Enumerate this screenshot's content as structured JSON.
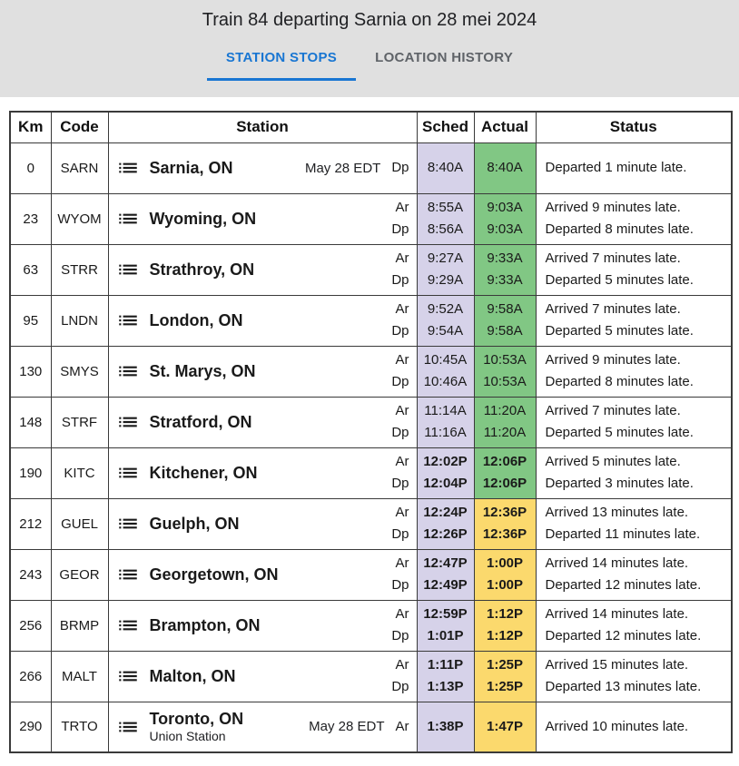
{
  "header": {
    "title": "Train 84 departing Sarnia on 28 mei 2024"
  },
  "tabs": [
    {
      "label": "STATION STOPS",
      "active": true
    },
    {
      "label": "LOCATION HISTORY",
      "active": false
    }
  ],
  "colors": {
    "accent_blue": "#1976d2",
    "tab_inactive": "#5f6368",
    "header_bg": "#e0e0e0",
    "sched_bg": "#d6d2e9",
    "ontime_green": "#81c784",
    "late_yellow": "#fbd96d",
    "border": "#3a3a3a"
  },
  "table": {
    "columns": [
      "Km",
      "Code",
      "Station",
      "Sched",
      "Actual",
      "Status"
    ],
    "rows": [
      {
        "km": "0",
        "code": "SARN",
        "station": "Sarnia, ON",
        "date_note": "May 28 EDT",
        "actual_tone": "green",
        "entries": [
          {
            "label": "Dp",
            "sched": "8:40A",
            "actual": "8:40A",
            "status": "Departed 1 minute late."
          }
        ]
      },
      {
        "km": "23",
        "code": "WYOM",
        "station": "Wyoming, ON",
        "actual_tone": "green",
        "entries": [
          {
            "label": "Ar",
            "sched": "8:55A",
            "actual": "9:03A",
            "status": "Arrived 9 minutes late."
          },
          {
            "label": "Dp",
            "sched": "8:56A",
            "actual": "9:03A",
            "status": "Departed 8 minutes late."
          }
        ]
      },
      {
        "km": "63",
        "code": "STRR",
        "station": "Strathroy, ON",
        "actual_tone": "green",
        "entries": [
          {
            "label": "Ar",
            "sched": "9:27A",
            "actual": "9:33A",
            "status": "Arrived 7 minutes late."
          },
          {
            "label": "Dp",
            "sched": "9:29A",
            "actual": "9:33A",
            "status": "Departed 5 minutes late."
          }
        ]
      },
      {
        "km": "95",
        "code": "LNDN",
        "station": "London, ON",
        "actual_tone": "green",
        "entries": [
          {
            "label": "Ar",
            "sched": "9:52A",
            "actual": "9:58A",
            "status": "Arrived 7 minutes late."
          },
          {
            "label": "Dp",
            "sched": "9:54A",
            "actual": "9:58A",
            "status": "Departed 5 minutes late."
          }
        ]
      },
      {
        "km": "130",
        "code": "SMYS",
        "station": "St. Marys, ON",
        "actual_tone": "green",
        "entries": [
          {
            "label": "Ar",
            "sched": "10:45A",
            "actual": "10:53A",
            "status": "Arrived 9 minutes late."
          },
          {
            "label": "Dp",
            "sched": "10:46A",
            "actual": "10:53A",
            "status": "Departed 8 minutes late."
          }
        ]
      },
      {
        "km": "148",
        "code": "STRF",
        "station": "Stratford, ON",
        "actual_tone": "green",
        "entries": [
          {
            "label": "Ar",
            "sched": "11:14A",
            "actual": "11:20A",
            "status": "Arrived 7 minutes late."
          },
          {
            "label": "Dp",
            "sched": "11:16A",
            "actual": "11:20A",
            "status": "Departed 5 minutes late."
          }
        ]
      },
      {
        "km": "190",
        "code": "KITC",
        "station": "Kitchener, ON",
        "actual_tone": "green",
        "entries": [
          {
            "label": "Ar",
            "sched": "12:02P",
            "actual": "12:06P",
            "status": "Arrived 5 minutes late."
          },
          {
            "label": "Dp",
            "sched": "12:04P",
            "actual": "12:06P",
            "status": "Departed 3 minutes late."
          }
        ]
      },
      {
        "km": "212",
        "code": "GUEL",
        "station": "Guelph, ON",
        "actual_tone": "yellow",
        "entries": [
          {
            "label": "Ar",
            "sched": "12:24P",
            "actual": "12:36P",
            "status": "Arrived 13 minutes late."
          },
          {
            "label": "Dp",
            "sched": "12:26P",
            "actual": "12:36P",
            "status": "Departed 11 minutes late."
          }
        ]
      },
      {
        "km": "243",
        "code": "GEOR",
        "station": "Georgetown, ON",
        "actual_tone": "yellow",
        "entries": [
          {
            "label": "Ar",
            "sched": "12:47P",
            "actual": "1:00P",
            "status": "Arrived 14 minutes late."
          },
          {
            "label": "Dp",
            "sched": "12:49P",
            "actual": "1:00P",
            "status": "Departed 12 minutes late."
          }
        ]
      },
      {
        "km": "256",
        "code": "BRMP",
        "station": "Brampton, ON",
        "actual_tone": "yellow",
        "entries": [
          {
            "label": "Ar",
            "sched": "12:59P",
            "actual": "1:12P",
            "status": "Arrived 14 minutes late."
          },
          {
            "label": "Dp",
            "sched": "1:01P",
            "actual": "1:12P",
            "status": "Departed 12 minutes late."
          }
        ]
      },
      {
        "km": "266",
        "code": "MALT",
        "station": "Malton, ON",
        "actual_tone": "yellow",
        "entries": [
          {
            "label": "Ar",
            "sched": "1:11P",
            "actual": "1:25P",
            "status": "Arrived 15 minutes late."
          },
          {
            "label": "Dp",
            "sched": "1:13P",
            "actual": "1:25P",
            "status": "Departed 13 minutes late."
          }
        ]
      },
      {
        "km": "290",
        "code": "TRTO",
        "station": "Toronto, ON",
        "subtitle": "Union Station",
        "date_note": "May 28 EDT",
        "actual_tone": "yellow",
        "entries": [
          {
            "label": "Ar",
            "sched": "1:38P",
            "actual": "1:47P",
            "status": "Arrived 10 minutes late."
          }
        ]
      }
    ]
  }
}
